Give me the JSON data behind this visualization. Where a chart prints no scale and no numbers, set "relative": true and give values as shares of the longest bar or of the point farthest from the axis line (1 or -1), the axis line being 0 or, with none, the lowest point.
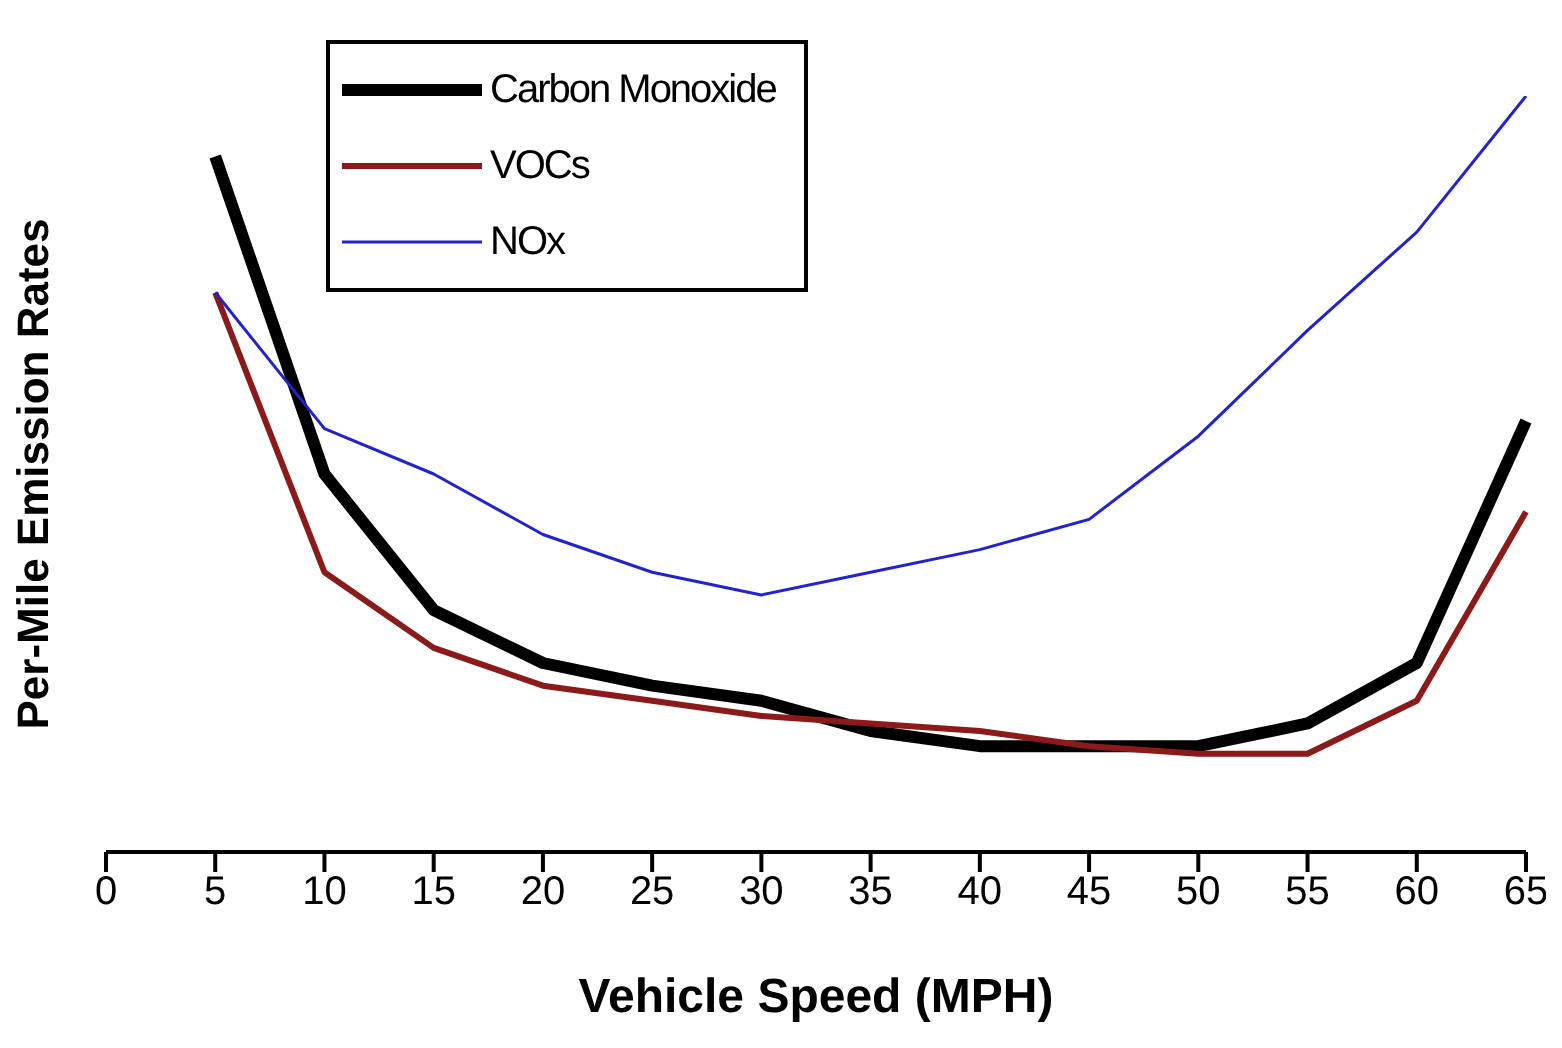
{
  "chart_data": {
    "type": "line",
    "relative": true,
    "xlabel": "Vehicle Speed (MPH)",
    "ylabel": "Per-Mile Emission Rates",
    "categories": [
      "0",
      "5",
      "10",
      "15",
      "20",
      "25",
      "30",
      "35",
      "40",
      "45",
      "50",
      "55",
      "60",
      "65"
    ],
    "legend": "top left",
    "grid": false,
    "marker": "none",
    "line_style": "solid",
    "series": [
      {
        "name": "Carbon Monoxide",
        "color": "#000000",
        "values": [
          null,
          0.92,
          0.5,
          0.32,
          0.25,
          0.22,
          0.2,
          0.16,
          0.14,
          0.14,
          0.14,
          0.17,
          0.25,
          0.57
        ]
      },
      {
        "name": "VOCs",
        "color": "#8b1a1a",
        "values": [
          null,
          0.74,
          0.37,
          0.27,
          0.22,
          0.2,
          0.18,
          0.17,
          0.16,
          0.14,
          0.13,
          0.13,
          0.2,
          0.45
        ]
      },
      {
        "name": "NOx",
        "color": "#2323cc",
        "values": [
          null,
          0.74,
          0.56,
          0.5,
          0.42,
          0.37,
          0.34,
          0.37,
          0.4,
          0.44,
          0.55,
          0.69,
          0.82,
          1
        ]
      }
    ]
  }
}
